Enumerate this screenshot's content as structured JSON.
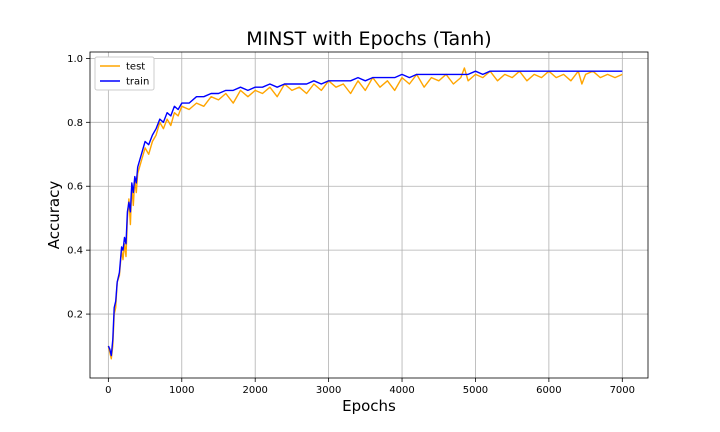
{
  "chart_data": {
    "type": "line",
    "title": "MINST with Epochs (Tanh)",
    "xlabel": "Epochs",
    "ylabel": "Accuracy",
    "xlim": [
      -250,
      7350
    ],
    "ylim": [
      0.0,
      1.02
    ],
    "xticks": [
      0,
      1000,
      2000,
      3000,
      4000,
      5000,
      6000,
      7000
    ],
    "yticks": [
      0.2,
      0.4,
      0.6,
      0.8,
      1.0
    ],
    "xtick_labels": [
      "0",
      "1000",
      "2000",
      "3000",
      "4000",
      "5000",
      "6000",
      "7000"
    ],
    "ytick_labels": [
      "0.2",
      "0.4",
      "0.6",
      "0.8",
      "1.0"
    ],
    "grid": true,
    "legend_position": "top-left",
    "series": [
      {
        "name": "test",
        "color": "#FFA500",
        "x": [
          0,
          20,
          40,
          60,
          80,
          100,
          120,
          150,
          180,
          200,
          220,
          240,
          260,
          280,
          300,
          320,
          340,
          360,
          380,
          400,
          450,
          500,
          550,
          600,
          650,
          700,
          750,
          800,
          850,
          900,
          950,
          1000,
          1100,
          1200,
          1300,
          1400,
          1500,
          1600,
          1700,
          1800,
          1900,
          2000,
          2100,
          2200,
          2300,
          2400,
          2500,
          2600,
          2700,
          2800,
          2900,
          3000,
          3100,
          3200,
          3300,
          3400,
          3500,
          3600,
          3700,
          3800,
          3900,
          4000,
          4100,
          4200,
          4300,
          4400,
          4500,
          4600,
          4700,
          4800,
          4850,
          4900,
          5000,
          5100,
          5200,
          5300,
          5400,
          5500,
          5600,
          5700,
          5800,
          5900,
          6000,
          6100,
          6200,
          6300,
          6400,
          6450,
          6500,
          6600,
          6700,
          6800,
          6900,
          7000
        ],
        "y": [
          0.1,
          0.08,
          0.06,
          0.1,
          0.2,
          0.22,
          0.3,
          0.32,
          0.4,
          0.37,
          0.42,
          0.38,
          0.5,
          0.56,
          0.48,
          0.6,
          0.54,
          0.62,
          0.58,
          0.64,
          0.68,
          0.72,
          0.7,
          0.74,
          0.76,
          0.8,
          0.78,
          0.81,
          0.79,
          0.83,
          0.82,
          0.85,
          0.84,
          0.86,
          0.85,
          0.88,
          0.87,
          0.89,
          0.86,
          0.9,
          0.88,
          0.9,
          0.89,
          0.91,
          0.88,
          0.92,
          0.9,
          0.91,
          0.89,
          0.92,
          0.9,
          0.93,
          0.91,
          0.92,
          0.89,
          0.93,
          0.9,
          0.94,
          0.91,
          0.93,
          0.9,
          0.94,
          0.92,
          0.95,
          0.91,
          0.94,
          0.93,
          0.95,
          0.92,
          0.94,
          0.97,
          0.93,
          0.95,
          0.94,
          0.96,
          0.93,
          0.95,
          0.94,
          0.96,
          0.93,
          0.95,
          0.94,
          0.96,
          0.94,
          0.95,
          0.93,
          0.96,
          0.92,
          0.95,
          0.96,
          0.94,
          0.95,
          0.94,
          0.95
        ]
      },
      {
        "name": "train",
        "color": "#0000FF",
        "x": [
          0,
          20,
          40,
          60,
          80,
          100,
          120,
          150,
          180,
          200,
          220,
          240,
          260,
          280,
          300,
          320,
          340,
          360,
          380,
          400,
          450,
          500,
          550,
          600,
          650,
          700,
          750,
          800,
          850,
          900,
          950,
          1000,
          1100,
          1200,
          1300,
          1400,
          1500,
          1600,
          1700,
          1800,
          1900,
          2000,
          2100,
          2200,
          2300,
          2400,
          2500,
          2600,
          2700,
          2800,
          2900,
          3000,
          3100,
          3200,
          3300,
          3400,
          3500,
          3600,
          3700,
          3800,
          3900,
          4000,
          4100,
          4200,
          4300,
          4400,
          4500,
          4600,
          4700,
          4800,
          4900,
          5000,
          5100,
          5200,
          5300,
          5400,
          5500,
          5600,
          5700,
          5800,
          5900,
          6000,
          6100,
          6200,
          6300,
          6400,
          6500,
          6600,
          6700,
          6800,
          6900,
          7000
        ],
        "y": [
          0.1,
          0.09,
          0.07,
          0.12,
          0.22,
          0.24,
          0.3,
          0.33,
          0.41,
          0.4,
          0.44,
          0.42,
          0.52,
          0.55,
          0.52,
          0.61,
          0.58,
          0.63,
          0.61,
          0.66,
          0.7,
          0.74,
          0.73,
          0.76,
          0.78,
          0.81,
          0.8,
          0.83,
          0.82,
          0.85,
          0.84,
          0.86,
          0.86,
          0.88,
          0.88,
          0.89,
          0.89,
          0.9,
          0.9,
          0.91,
          0.9,
          0.91,
          0.91,
          0.92,
          0.91,
          0.92,
          0.92,
          0.92,
          0.92,
          0.93,
          0.92,
          0.93,
          0.93,
          0.93,
          0.93,
          0.94,
          0.93,
          0.94,
          0.94,
          0.94,
          0.94,
          0.95,
          0.94,
          0.95,
          0.95,
          0.95,
          0.95,
          0.95,
          0.95,
          0.95,
          0.95,
          0.96,
          0.95,
          0.96,
          0.96,
          0.96,
          0.96,
          0.96,
          0.96,
          0.96,
          0.96,
          0.96,
          0.96,
          0.96,
          0.96,
          0.96,
          0.96,
          0.96,
          0.96,
          0.96,
          0.96,
          0.96
        ]
      }
    ]
  }
}
